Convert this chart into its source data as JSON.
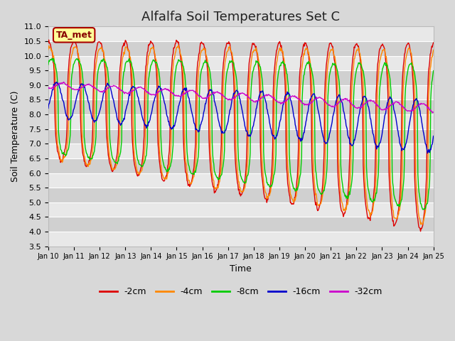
{
  "title": "Alfalfa Soil Temperatures Set C",
  "xlabel": "Time",
  "ylabel": "Soil Temperature (C)",
  "ylim": [
    3.5,
    11.0
  ],
  "yticks": [
    3.5,
    4.0,
    4.5,
    5.0,
    5.5,
    6.0,
    6.5,
    7.0,
    7.5,
    8.0,
    8.5,
    9.0,
    9.5,
    10.0,
    10.5,
    11.0
  ],
  "xtick_labels": [
    "Jan 10",
    "Jan 11",
    "Jan 12",
    "Jan 13",
    "Jan 14",
    "Jan 15",
    "Jan 16",
    "Jan 17",
    "Jan 18",
    "Jan 19",
    "Jan 20",
    "Jan 21",
    "Jan 22",
    "Jan 23",
    "Jan 24",
    "Jan 25"
  ],
  "n_days": 15,
  "points_per_day": 48,
  "series": {
    "-2cm": {
      "color": "#dd0000",
      "lw": 1.0
    },
    "-4cm": {
      "color": "#ff8800",
      "lw": 1.0
    },
    "-8cm": {
      "color": "#00cc00",
      "lw": 1.0
    },
    "-16cm": {
      "color": "#0000cc",
      "lw": 1.0
    },
    "-32cm": {
      "color": "#cc00cc",
      "lw": 1.0
    }
  },
  "legend_label": "TA_met",
  "legend_box_color": "#ffff99",
  "legend_box_edge": "#aa0000",
  "bg_color": "#d8d8d8",
  "plot_bg_color": "#d8d8d8",
  "grid_color": "#ffffff",
  "title_fontsize": 13,
  "band_color_dark": "#d0d0d0",
  "band_color_light": "#e8e8e8"
}
